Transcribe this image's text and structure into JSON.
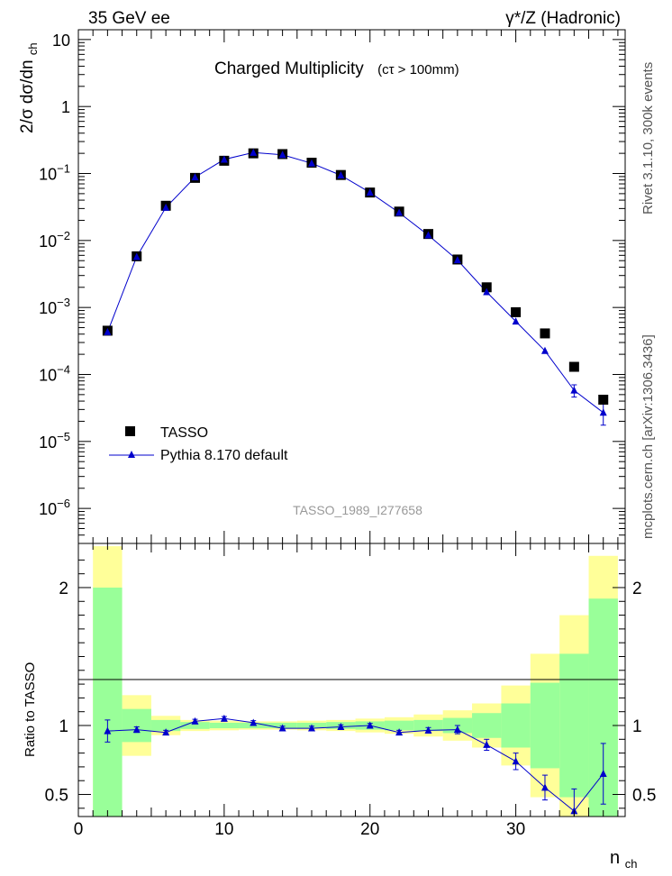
{
  "header": {
    "left": "35 GeV ee",
    "right": "γ*/Z (Hadronic)",
    "side_top": "Rivet 3.1.10,  300k events",
    "side_bottom": "mcplots.cern.ch [arXiv:1306.3436]"
  },
  "chart_data": [
    {
      "type": "scatter",
      "title": "Charged Multiplicity",
      "title_note": "(cτ > 100mm)",
      "analysis_label": "TASSO_1989_I277658",
      "ylabel": "2/σ dσ/dn",
      "ylabel_sub": "ch",
      "yscale": "log",
      "ylim": [
        3e-07,
        14
      ],
      "xlim": [
        0,
        37.5
      ],
      "ytick_labels": [
        {
          "base": "10",
          "exp": "−6",
          "value": 1e-06
        },
        {
          "base": "10",
          "exp": "−5",
          "value": 1e-05
        },
        {
          "base": "10",
          "exp": "−4",
          "value": 0.0001
        },
        {
          "base": "10",
          "exp": "−3",
          "value": 0.001
        },
        {
          "base": "10",
          "exp": "−2",
          "value": 0.01
        },
        {
          "base": "10",
          "exp": "−1",
          "value": 0.1
        },
        {
          "base": "1",
          "exp": "",
          "value": 1
        },
        {
          "base": "10",
          "exp": "",
          "value": 10
        }
      ],
      "legend": {
        "position": "bottom-left",
        "entries": [
          "TASSO",
          "Pythia 8.170 default"
        ]
      },
      "series": [
        {
          "name": "TASSO",
          "marker": "square",
          "color": "#000000",
          "x": [
            2,
            4,
            6,
            8,
            10,
            12,
            14,
            16,
            18,
            20,
            22,
            24,
            26,
            28,
            30,
            32,
            34,
            36
          ],
          "y": [
            0.00045,
            0.0058,
            0.033,
            0.086,
            0.155,
            0.2,
            0.195,
            0.145,
            0.095,
            0.052,
            0.027,
            0.0125,
            0.0052,
            0.002,
            0.00085,
            0.00041,
            0.00013,
            4.2e-05
          ]
        },
        {
          "name": "Pythia 8.170 default",
          "marker": "triangle",
          "color": "#0000cc",
          "x": [
            2,
            4,
            6,
            8,
            10,
            12,
            14,
            16,
            18,
            20,
            22,
            24,
            26,
            28,
            30,
            32,
            34,
            36
          ],
          "y": [
            0.00043,
            0.0057,
            0.031,
            0.088,
            0.162,
            0.205,
            0.19,
            0.142,
            0.094,
            0.052,
            0.026,
            0.012,
            0.0051,
            0.0017,
            0.00062,
            0.000225,
            5.8e-05,
            2.7e-05
          ],
          "yerr": [
            0,
            0,
            0,
            0,
            0,
            0,
            0,
            0,
            0,
            0,
            0,
            0,
            0,
            0,
            0,
            0,
            1.2e-05,
            9.5e-06
          ]
        }
      ]
    },
    {
      "type": "line",
      "ylabel": "Ratio to TASSO",
      "xlabel": "n",
      "xlabel_sub": "ch",
      "xlim": [
        0,
        37.5
      ],
      "ylim": [
        0.34,
        2.32
      ],
      "xticks": [
        0,
        10,
        20,
        30
      ],
      "yticks": [
        0.5,
        1,
        2
      ],
      "ytick_labels": [
        "0.5",
        "1",
        "2"
      ],
      "reference_line": 1,
      "bands": {
        "bin_edges": [
          1,
          3,
          5,
          7,
          9,
          11,
          13,
          15,
          17,
          19,
          21,
          23,
          25,
          27,
          29,
          31,
          33,
          35,
          37
        ],
        "yellow_color": "#ffff99",
        "green_color": "#99ff99",
        "yellow_half": [
          1.3,
          0.22,
          0.07,
          0.04,
          0.035,
          0.03,
          0.03,
          0.035,
          0.04,
          0.05,
          0.06,
          0.08,
          0.11,
          0.16,
          0.29,
          0.52,
          0.8,
          1.23
        ],
        "green_half": [
          1.0,
          0.12,
          0.04,
          0.025,
          0.02,
          0.02,
          0.02,
          0.02,
          0.025,
          0.03,
          0.035,
          0.04,
          0.055,
          0.09,
          0.16,
          0.31,
          0.52,
          0.92
        ]
      },
      "series": [
        {
          "name": "Pythia 8.170 default",
          "color": "#0000cc",
          "x": [
            2,
            4,
            6,
            8,
            10,
            12,
            14,
            16,
            18,
            20,
            22,
            24,
            26,
            28,
            30,
            32,
            34,
            36
          ],
          "y": [
            0.96,
            0.97,
            0.95,
            1.03,
            1.05,
            1.02,
            0.98,
            0.98,
            0.99,
            1.0,
            0.95,
            0.965,
            0.97,
            0.86,
            0.74,
            0.55,
            0.38,
            0.65
          ],
          "yerr": [
            0.08,
            0.02,
            0.015,
            0.015,
            0.015,
            0.015,
            0.015,
            0.015,
            0.015,
            0.015,
            0.015,
            0.02,
            0.03,
            0.04,
            0.06,
            0.09,
            0.16,
            0.22
          ]
        }
      ]
    }
  ]
}
